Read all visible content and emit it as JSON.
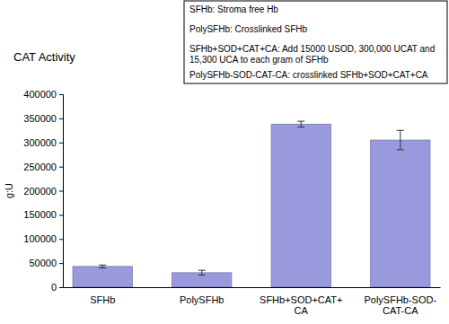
{
  "chart_data": {
    "type": "bar",
    "title": "CAT Activity",
    "y_label": "g:U",
    "categories": [
      "SFHb",
      "PolySFHb",
      "SFHb+SOD+CAT+CA",
      "PolySFHb-SOD-CAT-CA"
    ],
    "values": [
      43000,
      30000,
      338000,
      305000
    ],
    "errors": [
      3000,
      5000,
      6000,
      20000
    ],
    "color": "#9999dd",
    "ylim": [
      0,
      400000
    ],
    "yticks": [
      0,
      50000,
      100000,
      150000,
      200000,
      250000,
      300000,
      350000,
      400000
    ],
    "grid": false,
    "annotations": [
      "SFHb: Stroma free Hb",
      "PolySFHb: Crosslinked SFHb",
      "SFHb+SOD+CAT+CA: Add 15000 USOD, 300,000 UCAT and",
      "15,300 UCA to each gram of SFHb",
      "PolySFHb-SOD-CAT-CA: crosslinked  SFHb+SOD+CAT+CA"
    ]
  }
}
